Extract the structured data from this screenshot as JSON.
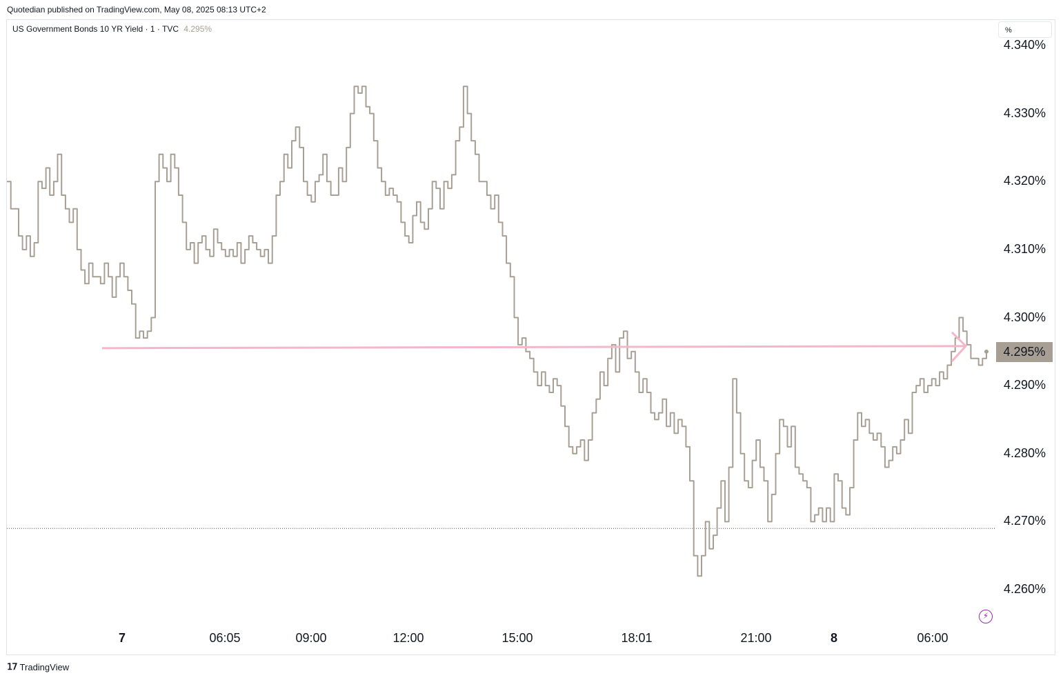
{
  "header": {
    "published": "Quotedian published on TradingView.com, May 08, 2025 08:13 UTC+2"
  },
  "legend": {
    "symbol": "US Government Bonds 10 YR Yield · 1 · TVC",
    "last_value": "4.295%"
  },
  "unit_selector": "%",
  "footer": {
    "brand": "TradingView"
  },
  "colors": {
    "series": "#a89f94",
    "arrow": "#f4b6c9",
    "badge": "#a89f94",
    "alert": "#9c27b0"
  },
  "icons": {
    "alert": "lightning-icon",
    "brand": "tradingview-logo-icon"
  },
  "chart_data": {
    "type": "line",
    "ylim": [
      4.255,
      4.342
    ],
    "y_ticks": [
      "4.260%",
      "4.270%",
      "4.280%",
      "4.290%",
      "4.300%",
      "4.310%",
      "4.320%",
      "4.330%",
      "4.340%"
    ],
    "y_tick_values": [
      4.26,
      4.27,
      4.28,
      4.29,
      4.3,
      4.31,
      4.32,
      4.33,
      4.34
    ],
    "x_ticks": [
      "7",
      "06:05",
      "09:00",
      "12:00",
      "15:00",
      "18:01",
      "21:00",
      "8",
      "06:00"
    ],
    "last_value": 4.295,
    "dotted_level": 4.269,
    "horizontal_arrow_level": 4.295,
    "series": [
      {
        "values": [
          4.32,
          4.316,
          4.316,
          4.312,
          4.31,
          4.312,
          4.309,
          4.311,
          4.32,
          4.319,
          4.322,
          4.318,
          4.32,
          4.324,
          4.318,
          4.316,
          4.314,
          4.316,
          4.31,
          4.307,
          4.305,
          4.308,
          4.306,
          4.306,
          4.305,
          4.308,
          4.306,
          4.303,
          4.306,
          4.308,
          4.306,
          4.304,
          4.302,
          4.297,
          4.298,
          4.297,
          4.298,
          4.3,
          4.32,
          4.324,
          4.322,
          4.32,
          4.324,
          4.322,
          4.318,
          4.314,
          4.31,
          4.311,
          4.308,
          4.311,
          4.312,
          4.31,
          4.309,
          4.313,
          4.311,
          4.31,
          4.309,
          4.31,
          4.309,
          4.311,
          4.308,
          4.31,
          4.312,
          4.311,
          4.31,
          4.309,
          4.31,
          4.308,
          4.312,
          4.318,
          4.32,
          4.324,
          4.322,
          4.326,
          4.328,
          4.325,
          4.32,
          4.318,
          4.317,
          4.32,
          4.321,
          4.324,
          4.32,
          4.318,
          4.318,
          4.322,
          4.32,
          4.325,
          4.33,
          4.334,
          4.333,
          4.334,
          4.331,
          4.33,
          4.326,
          4.322,
          4.32,
          4.318,
          4.319,
          4.318,
          4.317,
          4.314,
          4.312,
          4.311,
          4.315,
          4.317,
          4.314,
          4.313,
          4.316,
          4.32,
          4.319,
          4.316,
          4.32,
          4.319,
          4.321,
          4.326,
          4.328,
          4.334,
          4.33,
          4.326,
          4.324,
          4.32,
          4.32,
          4.318,
          4.316,
          4.318,
          4.314,
          4.312,
          4.308,
          4.306,
          4.3,
          4.296,
          4.297,
          4.295,
          4.294,
          4.292,
          4.29,
          4.292,
          4.29,
          4.289,
          4.291,
          4.29,
          4.287,
          4.284,
          4.281,
          4.28,
          4.281,
          4.282,
          4.279,
          4.282,
          4.286,
          4.288,
          4.292,
          4.29,
          4.294,
          4.296,
          4.292,
          4.297,
          4.298,
          4.294,
          4.295,
          4.292,
          4.289,
          4.291,
          4.289,
          4.286,
          4.285,
          4.286,
          4.288,
          4.284,
          4.286,
          4.283,
          4.285,
          4.284,
          4.281,
          4.276,
          4.265,
          4.262,
          4.265,
          4.27,
          4.266,
          4.268,
          4.272,
          4.276,
          4.27,
          4.278,
          4.291,
          4.286,
          4.28,
          4.276,
          4.275,
          4.279,
          4.282,
          4.278,
          4.276,
          4.27,
          4.274,
          4.28,
          4.285,
          4.284,
          4.281,
          4.284,
          4.278,
          4.277,
          4.276,
          4.275,
          4.27,
          4.271,
          4.272,
          4.27,
          4.272,
          4.27,
          4.277,
          4.276,
          4.272,
          4.271,
          4.275,
          4.282,
          4.286,
          4.284,
          4.285,
          4.283,
          4.282,
          4.283,
          4.281,
          4.278,
          4.279,
          4.281,
          4.28,
          4.282,
          4.285,
          4.283,
          4.289,
          4.29,
          4.291,
          4.289,
          4.29,
          4.291,
          4.29,
          4.292,
          4.291,
          4.293,
          4.295,
          4.297,
          4.3,
          4.298,
          4.296,
          4.294,
          4.294,
          4.293,
          4.294,
          4.295
        ]
      }
    ]
  }
}
